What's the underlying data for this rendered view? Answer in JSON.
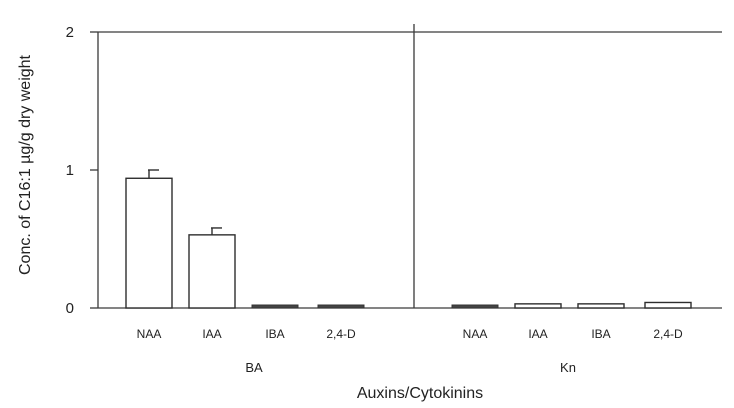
{
  "chart_data": {
    "type": "bar",
    "ylabel": "Conc. of C16:1 µg/g dry weight",
    "xlabel": "Auxins/Cytokinins",
    "ylim": [
      0,
      2
    ],
    "yticks": [
      "0",
      "1",
      "2"
    ],
    "grid": false,
    "groups": [
      {
        "label": "BA",
        "categories": [
          "NAA",
          "IAA",
          "IBA",
          "2,4-D"
        ],
        "values": [
          0.94,
          0.53,
          0.01,
          0.01
        ],
        "errors": [
          0.06,
          0.05,
          0,
          0
        ]
      },
      {
        "label": "Kn",
        "categories": [
          "NAA",
          "IAA",
          "IBA",
          "2,4-D"
        ],
        "values": [
          0.02,
          0.03,
          0.03,
          0.04
        ],
        "errors": [
          0,
          0,
          0,
          0
        ]
      }
    ]
  }
}
